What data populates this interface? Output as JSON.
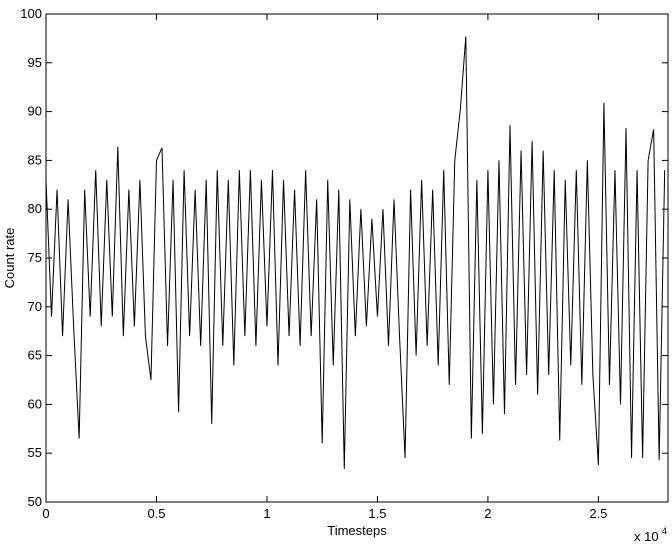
{
  "chart_data": {
    "type": "line",
    "xlabel": "Timesteps",
    "ylabel": "Count rate",
    "x_multiplier": "x 10",
    "x_multiplier_exponent": "4",
    "xlim": [
      0,
      28150
    ],
    "ylim": [
      50,
      100
    ],
    "xticks": [
      {
        "value": 0,
        "label": "0"
      },
      {
        "value": 5000,
        "label": "0.5"
      },
      {
        "value": 10000,
        "label": "1"
      },
      {
        "value": 15000,
        "label": "1.5"
      },
      {
        "value": 20000,
        "label": "2"
      },
      {
        "value": 25000,
        "label": "2.5"
      }
    ],
    "yticks": [
      50,
      55,
      60,
      65,
      70,
      75,
      80,
      85,
      90,
      95,
      100
    ],
    "grid": false,
    "series": [
      {
        "color": "#000000",
        "x": [
          0,
          250,
          500,
          750,
          1000,
          1250,
          1500,
          1750,
          2000,
          2250,
          2500,
          2750,
          3000,
          3250,
          3500,
          3750,
          4000,
          4250,
          4500,
          4750,
          5000,
          5250,
          5500,
          5750,
          6000,
          6250,
          6500,
          6750,
          7000,
          7250,
          7500,
          7750,
          8000,
          8250,
          8500,
          8750,
          9000,
          9250,
          9500,
          9750,
          10000,
          10250,
          10500,
          10750,
          11000,
          11250,
          11500,
          11750,
          12000,
          12250,
          12500,
          12750,
          13000,
          13250,
          13500,
          13750,
          14000,
          14250,
          14500,
          14750,
          15000,
          15250,
          15500,
          15750,
          16000,
          16250,
          16500,
          16750,
          17000,
          17250,
          17500,
          17750,
          18000,
          18250,
          18500,
          18750,
          19000,
          19250,
          19500,
          19750,
          20000,
          20250,
          20500,
          20750,
          21000,
          21250,
          21500,
          21750,
          22000,
          22250,
          22500,
          22750,
          23000,
          23250,
          23500,
          23750,
          24000,
          24250,
          24500,
          24750,
          25000,
          25250,
          25500,
          25750,
          26000,
          26250,
          26500,
          26750,
          27000,
          27250,
          27500,
          27750,
          28000
        ],
        "values": [
          83,
          69,
          82,
          67,
          81,
          68,
          56.5,
          82,
          69,
          84,
          68,
          83,
          69,
          86.4,
          67,
          82,
          68,
          83,
          67,
          62.5,
          85,
          86.3,
          66,
          83,
          59.2,
          84,
          67,
          82,
          66,
          83,
          58,
          84,
          66,
          83,
          64,
          84,
          67,
          84,
          66,
          83,
          68,
          84,
          64,
          83,
          67,
          82,
          66,
          84,
          67,
          81,
          56,
          83,
          64,
          82,
          53.4,
          81,
          67,
          80,
          68,
          79,
          69,
          80,
          66,
          81,
          67,
          54.5,
          82,
          65,
          83,
          66,
          82,
          64,
          84,
          62,
          85,
          90.2,
          97.7,
          56.5,
          83,
          57,
          84,
          60,
          85,
          59,
          88.6,
          62,
          86,
          63,
          87,
          61,
          86,
          63,
          84,
          56.3,
          83,
          64,
          84,
          62,
          85,
          63,
          53.8,
          90.9,
          62,
          84,
          60,
          88.3,
          54.5,
          84,
          54.5,
          85,
          88.2,
          54.3,
          84
        ]
      }
    ]
  }
}
